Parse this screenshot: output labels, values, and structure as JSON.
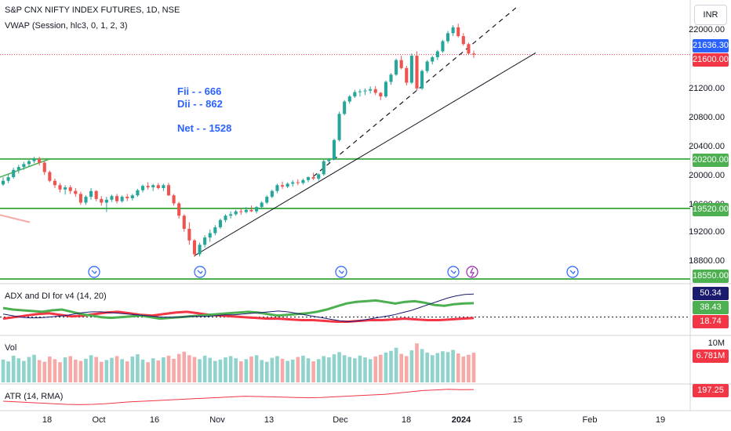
{
  "header": {
    "title": "S&P CNX NIFTY INDEX FUTURES, 1D, NSE",
    "indicator": "VWAP (Session, hlc3, 0, 1, 2, 3)",
    "currency": "INR"
  },
  "annotations": {
    "fii": "Fii  - - 666",
    "dii": "Dii  - - 862",
    "net": "Net -  - 1528"
  },
  "price_axis": {
    "ticks": [
      "22000.00",
      "21200.00",
      "20800.00",
      "20400.00",
      "20000.00",
      "19600.00",
      "19200.00",
      "18800.00"
    ],
    "tags": {
      "last": "21636.30",
      "current": "21600.00",
      "h1": "20200.00",
      "h2": "19520.00",
      "h3": "18550.00"
    }
  },
  "adx_panel": {
    "title": "ADX and DI for v4 (14, 20)",
    "values": {
      "adx": "50.34",
      "di_plus": "38.43",
      "di_minus": "18.74"
    }
  },
  "vol_panel": {
    "title": "Vol",
    "axis": "10M",
    "value": "6.781M"
  },
  "atr_panel": {
    "title": "ATR (14, RMA)",
    "value": "197.25"
  },
  "time_axis": [
    "18",
    "Oct",
    "16",
    "Nov",
    "13",
    "Dec",
    "18",
    "2024",
    "15",
    "Feb",
    "19"
  ],
  "colors": {
    "up": "#26a69a",
    "down": "#ef5350",
    "hline": "#4caf50",
    "adx": "#1a1a6e",
    "di_plus": "#4caf50",
    "di_minus": "#f23645",
    "vol_up": "#8fd3cc",
    "vol_down": "#f7a9a7",
    "annotation": "#2962ff"
  },
  "chart_data": {
    "type": "candlestick",
    "y_range": [
      18550,
      22300
    ],
    "horizontal_lines": [
      20200,
      19520,
      18550
    ],
    "candles": [
      [
        19850,
        19950,
        19830,
        19900
      ],
      [
        19900,
        19990,
        19870,
        19950
      ],
      [
        19950,
        20080,
        19930,
        20050
      ],
      [
        20050,
        20120,
        20000,
        20090
      ],
      [
        20090,
        20160,
        20050,
        20130
      ],
      [
        20130,
        20190,
        20090,
        20170
      ],
      [
        20170,
        20230,
        20140,
        20200
      ],
      [
        20200,
        20230,
        20110,
        20150
      ],
      [
        20150,
        20170,
        19980,
        20020
      ],
      [
        20020,
        20040,
        19880,
        19900
      ],
      [
        19900,
        19930,
        19800,
        19840
      ],
      [
        19840,
        19870,
        19740,
        19780
      ],
      [
        19780,
        19840,
        19710,
        19810
      ],
      [
        19810,
        19840,
        19720,
        19760
      ],
      [
        19760,
        19800,
        19680,
        19720
      ],
      [
        19720,
        19750,
        19570,
        19600
      ],
      [
        19600,
        19700,
        19570,
        19680
      ],
      [
        19680,
        19800,
        19640,
        19760
      ],
      [
        19760,
        19770,
        19620,
        19650
      ],
      [
        19650,
        19690,
        19560,
        19600
      ],
      [
        19600,
        19680,
        19470,
        19640
      ],
      [
        19640,
        19710,
        19610,
        19690
      ],
      [
        19690,
        19720,
        19590,
        19620
      ],
      [
        19620,
        19700,
        19600,
        19680
      ],
      [
        19680,
        19720,
        19620,
        19660
      ],
      [
        19660,
        19720,
        19630,
        19700
      ],
      [
        19700,
        19790,
        19680,
        19770
      ],
      [
        19770,
        19850,
        19740,
        19830
      ],
      [
        19830,
        19880,
        19780,
        19810
      ],
      [
        19810,
        19860,
        19760,
        19840
      ],
      [
        19840,
        19870,
        19780,
        19800
      ],
      [
        19800,
        19860,
        19760,
        19840
      ],
      [
        19840,
        19870,
        19690,
        19700
      ],
      [
        19700,
        19720,
        19560,
        19590
      ],
      [
        19590,
        19610,
        19380,
        19420
      ],
      [
        19420,
        19440,
        19200,
        19240
      ],
      [
        19240,
        19330,
        19020,
        19080
      ],
      [
        19080,
        19100,
        18850,
        18890
      ],
      [
        18890,
        19050,
        18860,
        19020
      ],
      [
        19020,
        19150,
        18980,
        19120
      ],
      [
        19120,
        19230,
        19060,
        19180
      ],
      [
        19180,
        19290,
        19150,
        19260
      ],
      [
        19260,
        19380,
        19240,
        19360
      ],
      [
        19360,
        19440,
        19330,
        19420
      ],
      [
        19420,
        19480,
        19380,
        19440
      ],
      [
        19440,
        19500,
        19420,
        19480
      ],
      [
        19480,
        19520,
        19430,
        19470
      ],
      [
        19470,
        19540,
        19450,
        19500
      ],
      [
        19500,
        19560,
        19470,
        19480
      ],
      [
        19480,
        19550,
        19450,
        19540
      ],
      [
        19540,
        19620,
        19510,
        19600
      ],
      [
        19600,
        19700,
        19580,
        19680
      ],
      [
        19680,
        19780,
        19660,
        19760
      ],
      [
        19760,
        19860,
        19730,
        19840
      ],
      [
        19840,
        19890,
        19790,
        19820
      ],
      [
        19820,
        19880,
        19800,
        19860
      ],
      [
        19860,
        19910,
        19820,
        19880
      ],
      [
        19880,
        19920,
        19840,
        19870
      ],
      [
        19870,
        19930,
        19850,
        19910
      ],
      [
        19910,
        19960,
        19880,
        19950
      ],
      [
        19950,
        20010,
        19910,
        19930
      ],
      [
        19930,
        20000,
        19900,
        19990
      ],
      [
        19990,
        20190,
        19970,
        20170
      ],
      [
        20170,
        20210,
        20140,
        20190
      ],
      [
        20190,
        20480,
        20190,
        20460
      ],
      [
        20460,
        20850,
        20440,
        20820
      ],
      [
        20820,
        21010,
        20800,
        20990
      ],
      [
        20990,
        21080,
        20960,
        21060
      ],
      [
        21060,
        21150,
        21040,
        21120
      ],
      [
        21120,
        21160,
        21060,
        21130
      ],
      [
        21130,
        21170,
        21080,
        21140
      ],
      [
        21140,
        21200,
        21100,
        21160
      ],
      [
        21160,
        21200,
        21080,
        21110
      ],
      [
        21110,
        21120,
        21010,
        21060
      ],
      [
        21060,
        21280,
        21040,
        21260
      ],
      [
        21260,
        21380,
        21220,
        21360
      ],
      [
        21360,
        21580,
        21340,
        21560
      ],
      [
        21560,
        21620,
        21430,
        21450
      ],
      [
        21450,
        21480,
        21210,
        21250
      ],
      [
        21250,
        21650,
        21230,
        21620
      ],
      [
        21620,
        21680,
        21140,
        21170
      ],
      [
        21170,
        21430,
        21150,
        21410
      ],
      [
        21410,
        21560,
        21380,
        21540
      ],
      [
        21540,
        21620,
        21500,
        21600
      ],
      [
        21600,
        21700,
        21560,
        21680
      ],
      [
        21680,
        21840,
        21660,
        21820
      ],
      [
        21820,
        21960,
        21790,
        21930
      ],
      [
        21930,
        22040,
        21890,
        22010
      ],
      [
        22010,
        22060,
        21870,
        21890
      ],
      [
        21890,
        21930,
        21760,
        21780
      ],
      [
        21780,
        21800,
        21630,
        21650
      ],
      [
        21650,
        21690,
        21590,
        21636
      ]
    ],
    "volume": [
      5.2,
      4.8,
      6.1,
      5.5,
      4.9,
      5.8,
      6.3,
      5.1,
      4.7,
      5.9,
      5.3,
      4.6,
      5.7,
      6.0,
      5.2,
      4.9,
      5.4,
      6.2,
      5.8,
      4.7,
      5.1,
      5.6,
      6.0,
      5.3,
      4.8,
      5.9,
      6.4,
      5.2,
      4.6,
      5.5,
      5.0,
      5.7,
      6.1,
      5.4,
      6.5,
      7.0,
      6.2,
      5.8,
      5.3,
      6.1,
      5.6,
      4.9,
      5.2,
      5.7,
      6.0,
      5.5,
      4.8,
      5.3,
      5.9,
      6.2,
      5.1,
      4.7,
      5.6,
      6.0,
      5.4,
      4.9,
      5.2,
      5.8,
      6.1,
      5.5,
      4.8,
      5.3,
      6.0,
      5.7,
      6.4,
      6.9,
      6.2,
      5.8,
      5.5,
      6.1,
      5.7,
      5.3,
      5.9,
      6.3,
      6.8,
      7.2,
      7.9,
      6.5,
      6.0,
      7.3,
      8.9,
      7.6,
      6.8,
      6.2,
      6.7,
      7.1,
      6.9,
      7.4,
      6.6,
      5.9,
      6.3,
      6.78
    ],
    "adx": {
      "adx": [
        24,
        22,
        20,
        19,
        19,
        20,
        21,
        22,
        24,
        26,
        27,
        27,
        26,
        25,
        24,
        23,
        22,
        21,
        20,
        20,
        20,
        21,
        21,
        21,
        22,
        23,
        23,
        24,
        25,
        26,
        27,
        28,
        27,
        25,
        23,
        21,
        19,
        17,
        15,
        14,
        15,
        17,
        19,
        21,
        23,
        26,
        29,
        33,
        37,
        41,
        45,
        48,
        50,
        50.34
      ],
      "di_plus": [
        32,
        30,
        29,
        28,
        27,
        29,
        30,
        27,
        24,
        22,
        20,
        19,
        20,
        21,
        22,
        20,
        18,
        19,
        20,
        21,
        22,
        23,
        24,
        25,
        26,
        27,
        26,
        24,
        22,
        23,
        24,
        25,
        27,
        30,
        34,
        38,
        40,
        41,
        42,
        40,
        38,
        40,
        41,
        39,
        36,
        35,
        37,
        38,
        38.43
      ],
      "di_minus": [
        18,
        20,
        22,
        24,
        25,
        23,
        21,
        22,
        24,
        26,
        27,
        25,
        23,
        22,
        24,
        26,
        27,
        25,
        23,
        22,
        21,
        20,
        19,
        18,
        18,
        17,
        16,
        16,
        15,
        14,
        14,
        15,
        16,
        16,
        17,
        18,
        17,
        16,
        16,
        17,
        18,
        18.74
      ]
    },
    "atr": [
      160,
      158,
      156,
      154,
      152,
      150,
      149,
      150,
      152,
      155,
      158,
      160,
      162,
      164,
      166,
      168,
      170,
      172,
      174,
      176,
      175,
      174,
      173,
      172,
      171,
      172,
      174,
      176,
      178,
      180,
      182,
      186,
      190,
      194,
      196,
      198,
      197,
      197.25
    ]
  }
}
